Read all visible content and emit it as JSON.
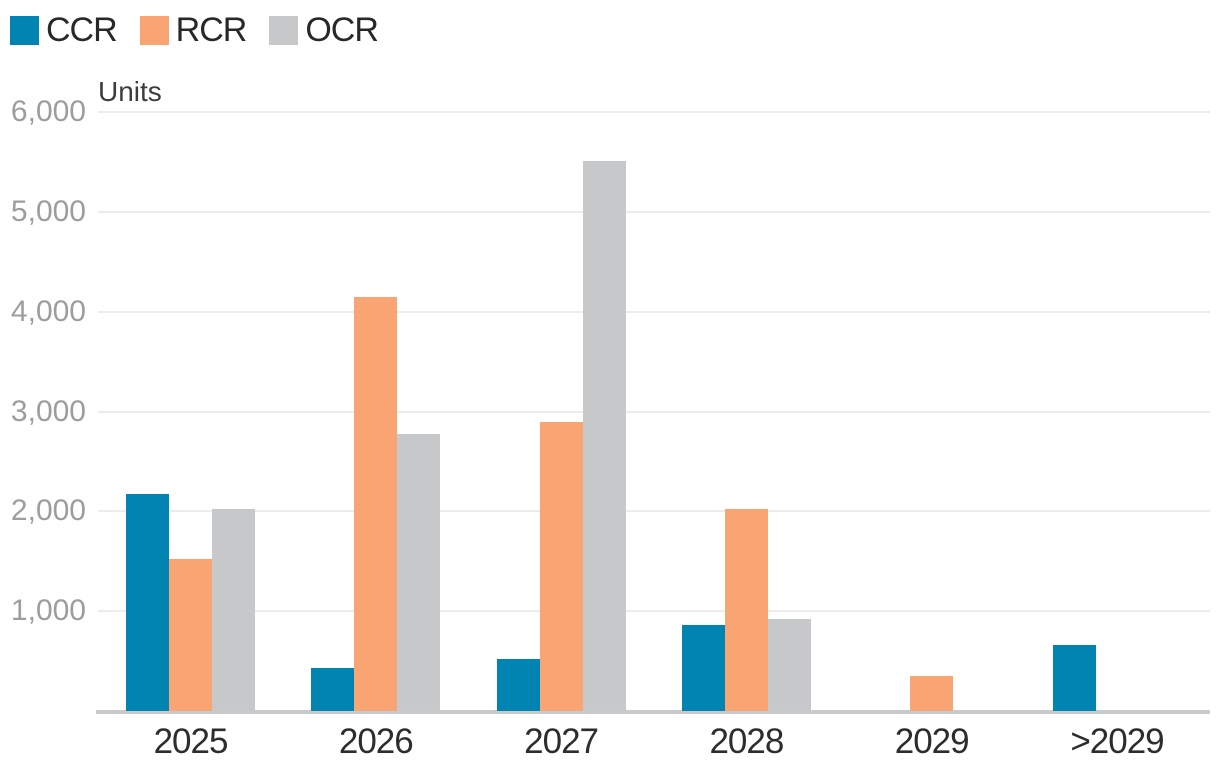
{
  "chart_data": {
    "type": "bar",
    "title": "",
    "xlabel": "",
    "ylabel": "Units",
    "categories": [
      "2025",
      "2026",
      "2027",
      "2028",
      "2029",
      ">2029"
    ],
    "series": [
      {
        "name": "CCR",
        "color": "#0284b2",
        "values": [
          2175,
          430,
          520,
          860,
          0,
          660
        ]
      },
      {
        "name": "RCR",
        "color": "#f8a473",
        "values": [
          1520,
          4150,
          2895,
          2025,
          350,
          0
        ]
      },
      {
        "name": "OCR",
        "color": "#c7c8ca",
        "values": [
          2025,
          2775,
          5510,
          920,
          0,
          0
        ]
      }
    ],
    "ylim": [
      0,
      6000
    ],
    "yticks": [
      1000,
      2000,
      3000,
      4000,
      5000,
      6000
    ],
    "ytick_labels": [
      "1,000",
      "2,000",
      "3,000",
      "4,000",
      "5,000",
      "6,000"
    ],
    "grid": true,
    "legend_position": "top-left",
    "colors": {
      "gridline": "#ececee",
      "baseline": "#c9cacb",
      "ytick_text": "#9d9d9d",
      "xlabel_text": "#2d2d2d",
      "legend_text": "#282828",
      "ylabel_text": "#3c3c3c",
      "background": "#ffffff"
    }
  }
}
